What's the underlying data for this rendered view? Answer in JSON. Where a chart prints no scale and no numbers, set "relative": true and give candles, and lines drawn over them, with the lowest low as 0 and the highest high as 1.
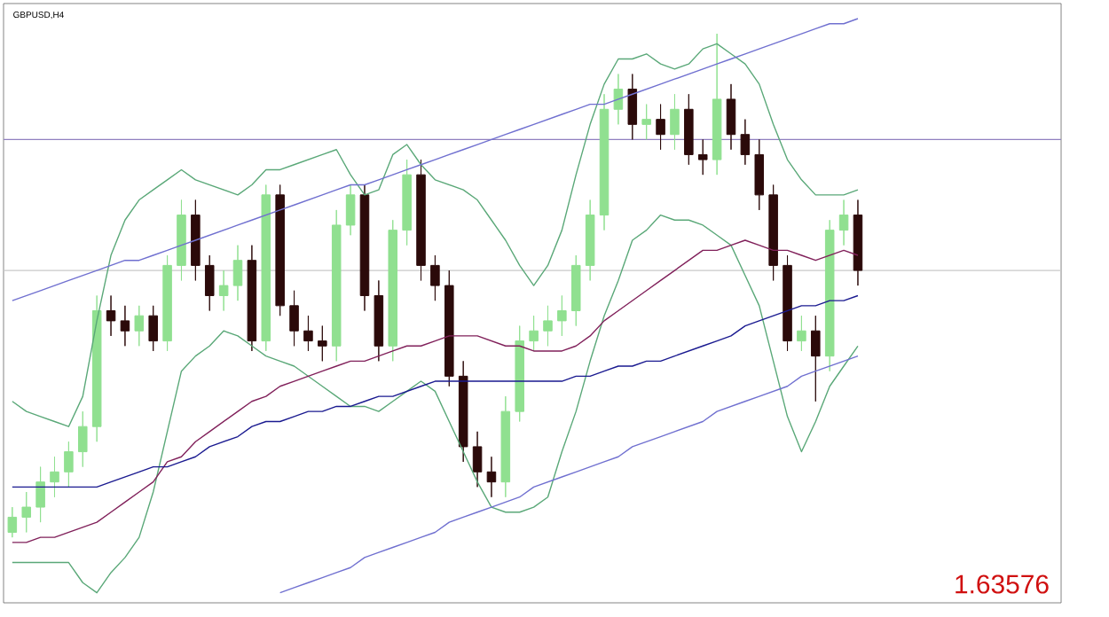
{
  "chart_data": {
    "type": "candlestick",
    "title": "GBPUSD,H4",
    "relative": true,
    "tick_labels": false,
    "categories": [
      null,
      null,
      null,
      null,
      null,
      null,
      null,
      null,
      null,
      null,
      null,
      null,
      null,
      null,
      null,
      null,
      null,
      null,
      null,
      null,
      null,
      null,
      null,
      null,
      null,
      null,
      null,
      null,
      null,
      null,
      null,
      null,
      null,
      null,
      null,
      null,
      null,
      null,
      null,
      null,
      null,
      null,
      null,
      null,
      null,
      null,
      null,
      null,
      null,
      null,
      null,
      null,
      null,
      null,
      null,
      null,
      null,
      null,
      null,
      null,
      null
    ],
    "annotations": [
      "1.63576"
    ],
    "ref_lines": [
      {
        "axis": "y",
        "value": 0.79,
        "color": "#9080c0"
      },
      {
        "axis": "y",
        "value": 0.53,
        "color": "#c8c8c8"
      }
    ],
    "series": [
      {
        "ohlc": [
          [
            0.01,
            0.06,
            0,
            0.04
          ],
          [
            0.04,
            0.09,
            0.01,
            0.06
          ],
          [
            0.06,
            0.14,
            0.03,
            0.11
          ],
          [
            0.11,
            0.16,
            0.08,
            0.13
          ],
          [
            0.13,
            0.19,
            0.1,
            0.17
          ],
          [
            0.17,
            0.25,
            0.14,
            0.22
          ],
          [
            0.22,
            0.48,
            0.19,
            0.45
          ],
          [
            0.45,
            0.48,
            0.4,
            0.43
          ],
          [
            0.43,
            0.46,
            0.38,
            0.41
          ],
          [
            0.41,
            0.46,
            0.38,
            0.44
          ],
          [
            0.44,
            0.46,
            0.37,
            0.39
          ],
          [
            0.39,
            0.56,
            0.37,
            0.54
          ],
          [
            0.54,
            0.67,
            0.51,
            0.64
          ],
          [
            0.64,
            0.67,
            0.51,
            0.54
          ],
          [
            0.54,
            0.56,
            0.45,
            0.48
          ],
          [
            0.48,
            0.53,
            0.45,
            0.5
          ],
          [
            0.5,
            0.58,
            0.47,
            0.55
          ],
          [
            0.55,
            0.58,
            0.37,
            0.39
          ],
          [
            0.39,
            0.7,
            0.37,
            0.68
          ],
          [
            0.68,
            0.7,
            0.44,
            0.46
          ],
          [
            0.46,
            0.49,
            0.38,
            0.41
          ],
          [
            0.41,
            0.44,
            0.37,
            0.39
          ],
          [
            0.39,
            0.42,
            0.35,
            0.38
          ],
          [
            0.38,
            0.65,
            0.35,
            0.62
          ],
          [
            0.62,
            0.7,
            0.6,
            0.68
          ],
          [
            0.68,
            0.7,
            0.45,
            0.48
          ],
          [
            0.48,
            0.51,
            0.35,
            0.38
          ],
          [
            0.38,
            0.63,
            0.35,
            0.61
          ],
          [
            0.61,
            0.75,
            0.58,
            0.72
          ],
          [
            0.72,
            0.75,
            0.51,
            0.54
          ],
          [
            0.54,
            0.56,
            0.47,
            0.5
          ],
          [
            0.5,
            0.53,
            0.3,
            0.32
          ],
          [
            0.32,
            0.35,
            0.15,
            0.18
          ],
          [
            0.18,
            0.21,
            0.1,
            0.13
          ],
          [
            0.13,
            0.16,
            0.08,
            0.11
          ],
          [
            0.11,
            0.28,
            0.08,
            0.25
          ],
          [
            0.25,
            0.42,
            0.23,
            0.39
          ],
          [
            0.39,
            0.44,
            0.37,
            0.41
          ],
          [
            0.41,
            0.46,
            0.38,
            0.43
          ],
          [
            0.43,
            0.48,
            0.4,
            0.45
          ],
          [
            0.45,
            0.56,
            0.42,
            0.54
          ],
          [
            0.54,
            0.67,
            0.51,
            0.64
          ],
          [
            0.64,
            0.88,
            0.61,
            0.85
          ],
          [
            0.85,
            0.92,
            0.82,
            0.89
          ],
          [
            0.89,
            0.92,
            0.79,
            0.82
          ],
          [
            0.82,
            0.86,
            0.79,
            0.83
          ],
          [
            0.83,
            0.86,
            0.77,
            0.8
          ],
          [
            0.8,
            0.88,
            0.77,
            0.85
          ],
          [
            0.85,
            0.88,
            0.74,
            0.76
          ],
          [
            0.76,
            0.79,
            0.72,
            0.75
          ],
          [
            0.75,
            1.0,
            0.72,
            0.87
          ],
          [
            0.87,
            0.9,
            0.77,
            0.8
          ],
          [
            0.8,
            0.83,
            0.74,
            0.76
          ],
          [
            0.76,
            0.79,
            0.65,
            0.68
          ],
          [
            0.68,
            0.7,
            0.51,
            0.54
          ],
          [
            0.54,
            0.56,
            0.37,
            0.39
          ],
          [
            0.39,
            0.44,
            0.37,
            0.41
          ],
          [
            0.41,
            0.44,
            0.27,
            0.36
          ],
          [
            0.36,
            0.63,
            0.33,
            0.61
          ],
          [
            0.61,
            0.67,
            0.58,
            0.64
          ],
          [
            0.64,
            0.67,
            0.5,
            0.53
          ]
        ],
        "colors": [
          "#90e090",
          "#90e090",
          "#90e090",
          "#90e090",
          "#90e090",
          "#90e090",
          "#90e090",
          "#2b0a0a",
          "#2b0a0a",
          "#90e090",
          "#2b0a0a",
          "#90e090",
          "#90e090",
          "#2b0a0a",
          "#2b0a0a",
          "#90e090",
          "#90e090",
          "#2b0a0a",
          "#90e090",
          "#2b0a0a",
          "#2b0a0a",
          "#2b0a0a",
          "#2b0a0a",
          "#90e090",
          "#90e090",
          "#2b0a0a",
          "#2b0a0a",
          "#90e090",
          "#90e090",
          "#2b0a0a",
          "#2b0a0a",
          "#2b0a0a",
          "#2b0a0a",
          "#2b0a0a",
          "#2b0a0a",
          "#90e090",
          "#90e090",
          "#90e090",
          "#90e090",
          "#90e090",
          "#90e090",
          "#90e090",
          "#90e090",
          "#90e090",
          "#2b0a0a",
          "#90e090",
          "#2b0a0a",
          "#90e090",
          "#2b0a0a",
          "#2b0a0a",
          "#90e090",
          "#2b0a0a",
          "#2b0a0a",
          "#2b0a0a",
          "#2b0a0a",
          "#2b0a0a",
          "#90e090",
          "#2b0a0a",
          "#90e090",
          "#90e090",
          "#2b0a0a"
        ]
      },
      {
        "type": "line",
        "color": "#5aa878",
        "values": [
          0.27,
          0.25,
          0.24,
          0.23,
          0.22,
          0.28,
          0.43,
          0.56,
          0.63,
          0.67,
          0.69,
          0.71,
          0.73,
          0.71,
          0.7,
          0.69,
          0.68,
          0.7,
          0.73,
          0.73,
          0.74,
          0.75,
          0.76,
          0.77,
          0.72,
          0.68,
          0.69,
          0.76,
          0.78,
          0.74,
          0.71,
          0.7,
          0.69,
          0.67,
          0.63,
          0.59,
          0.54,
          0.5,
          0.54,
          0.61,
          0.72,
          0.82,
          0.9,
          0.95,
          0.95,
          0.96,
          0.94,
          0.93,
          0.94,
          0.97,
          0.98,
          0.96,
          0.94,
          0.9,
          0.82,
          0.75,
          0.71,
          0.68,
          0.68,
          0.68,
          0.69
        ]
      },
      {
        "type": "line",
        "color": "#5aa878",
        "values": [
          -0.05,
          -0.05,
          -0.05,
          -0.05,
          -0.05,
          -0.09,
          -0.11,
          -0.07,
          -0.04,
          0.0,
          0.09,
          0.21,
          0.33,
          0.36,
          0.38,
          0.41,
          0.4,
          0.38,
          0.36,
          0.35,
          0.34,
          0.32,
          0.3,
          0.28,
          0.26,
          0.26,
          0.25,
          0.27,
          0.29,
          0.31,
          0.29,
          0.23,
          0.17,
          0.11,
          0.06,
          0.05,
          0.05,
          0.06,
          0.08,
          0.17,
          0.25,
          0.35,
          0.44,
          0.51,
          0.59,
          0.61,
          0.64,
          0.63,
          0.63,
          0.62,
          0.6,
          0.58,
          0.52,
          0.46,
          0.35,
          0.24,
          0.17,
          0.23,
          0.3,
          0.34,
          0.38
        ]
      },
      {
        "type": "line",
        "color": "#80205a",
        "values": [
          -0.01,
          -0.01,
          0.0,
          0.0,
          0.01,
          0.02,
          0.03,
          0.05,
          0.07,
          0.09,
          0.11,
          0.15,
          0.16,
          0.19,
          0.21,
          0.23,
          0.25,
          0.27,
          0.28,
          0.3,
          0.31,
          0.32,
          0.33,
          0.34,
          0.35,
          0.35,
          0.36,
          0.37,
          0.38,
          0.38,
          0.39,
          0.4,
          0.4,
          0.4,
          0.39,
          0.38,
          0.38,
          0.37,
          0.37,
          0.37,
          0.38,
          0.4,
          0.43,
          0.45,
          0.47,
          0.49,
          0.51,
          0.53,
          0.55,
          0.57,
          0.57,
          0.58,
          0.59,
          0.58,
          0.57,
          0.57,
          0.56,
          0.55,
          0.56,
          0.57,
          0.56
        ]
      },
      {
        "type": "line",
        "color": "#1a1a90",
        "values": [
          0.1,
          0.1,
          0.1,
          0.1,
          0.1,
          0.1,
          0.1,
          0.11,
          0.12,
          0.13,
          0.14,
          0.14,
          0.15,
          0.16,
          0.18,
          0.19,
          0.2,
          0.22,
          0.23,
          0.23,
          0.24,
          0.25,
          0.25,
          0.26,
          0.26,
          0.27,
          0.28,
          0.28,
          0.29,
          0.3,
          0.31,
          0.31,
          0.31,
          0.31,
          0.31,
          0.31,
          0.31,
          0.31,
          0.31,
          0.31,
          0.32,
          0.32,
          0.33,
          0.34,
          0.34,
          0.35,
          0.35,
          0.36,
          0.37,
          0.38,
          0.39,
          0.4,
          0.42,
          0.43,
          0.44,
          0.45,
          0.46,
          0.46,
          0.47,
          0.47,
          0.48
        ]
      },
      {
        "type": "line",
        "color": "#7070d0",
        "values": [
          0.47,
          0.48,
          0.49,
          0.5,
          0.51,
          0.52,
          0.53,
          0.54,
          0.55,
          0.55,
          0.56,
          0.57,
          0.58,
          0.59,
          0.6,
          0.61,
          0.62,
          0.63,
          0.64,
          0.65,
          0.66,
          0.67,
          0.68,
          0.69,
          0.7,
          0.7,
          0.71,
          0.72,
          0.73,
          0.74,
          0.75,
          0.76,
          0.77,
          0.78,
          0.79,
          0.8,
          0.81,
          0.82,
          0.83,
          0.84,
          0.85,
          0.86,
          0.86,
          0.87,
          0.88,
          0.89,
          0.9,
          0.91,
          0.92,
          0.93,
          0.94,
          0.95,
          0.96,
          0.97,
          0.98,
          0.99,
          1.0,
          1.01,
          1.02,
          1.02,
          1.03
        ]
      },
      {
        "type": "line",
        "color": "#7070d0",
        "values": [
          null,
          null,
          null,
          null,
          null,
          null,
          null,
          null,
          null,
          null,
          null,
          null,
          null,
          null,
          null,
          null,
          null,
          null,
          null,
          -0.11,
          -0.1,
          -0.09,
          -0.08,
          -0.07,
          -0.06,
          -0.04,
          -0.03,
          -0.02,
          -0.01,
          0.0,
          0.01,
          0.03,
          0.04,
          0.05,
          0.06,
          0.07,
          0.08,
          0.1,
          0.11,
          0.12,
          0.13,
          0.14,
          0.15,
          0.16,
          0.18,
          0.19,
          0.2,
          0.21,
          0.22,
          0.23,
          0.25,
          0.26,
          0.27,
          0.28,
          0.29,
          0.3,
          0.32,
          0.33,
          0.34,
          0.35,
          0.36
        ]
      }
    ]
  }
}
